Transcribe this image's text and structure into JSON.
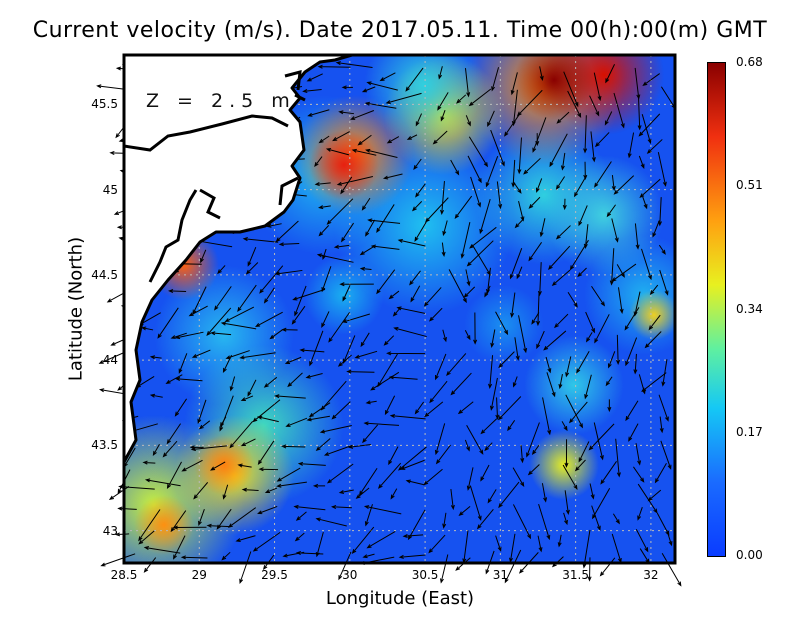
{
  "title": "Current velocity (m/s). Date 2017.05.11. Time 00(h):00(m) GMT",
  "depth_label": "Z = 2.5 m",
  "x_axis": {
    "label": "Longitude (East)",
    "ticks": [
      "28.5",
      "29",
      "29.5",
      "30",
      "30.5",
      "31",
      "31.5",
      "32"
    ],
    "range": [
      28.5,
      32.16
    ]
  },
  "y_axis": {
    "label": "Latitude (North)",
    "ticks": [
      "43",
      "43.5",
      "44",
      "44.5",
      "45",
      "45.5"
    ],
    "range": [
      42.81,
      45.79
    ]
  },
  "colorbar": {
    "ticks": [
      "0.68",
      "0.51",
      "0.34",
      "0.17",
      "0.00"
    ],
    "range": [
      0,
      0.68
    ],
    "colors": [
      "#0a3cff",
      "#15c8f5",
      "#e8f020",
      "#ffa010",
      "#f03010",
      "#8a0000"
    ]
  },
  "colors": {
    "ocean_base": "#1652f0",
    "land": "#ffffff",
    "coast": "#000000"
  }
}
